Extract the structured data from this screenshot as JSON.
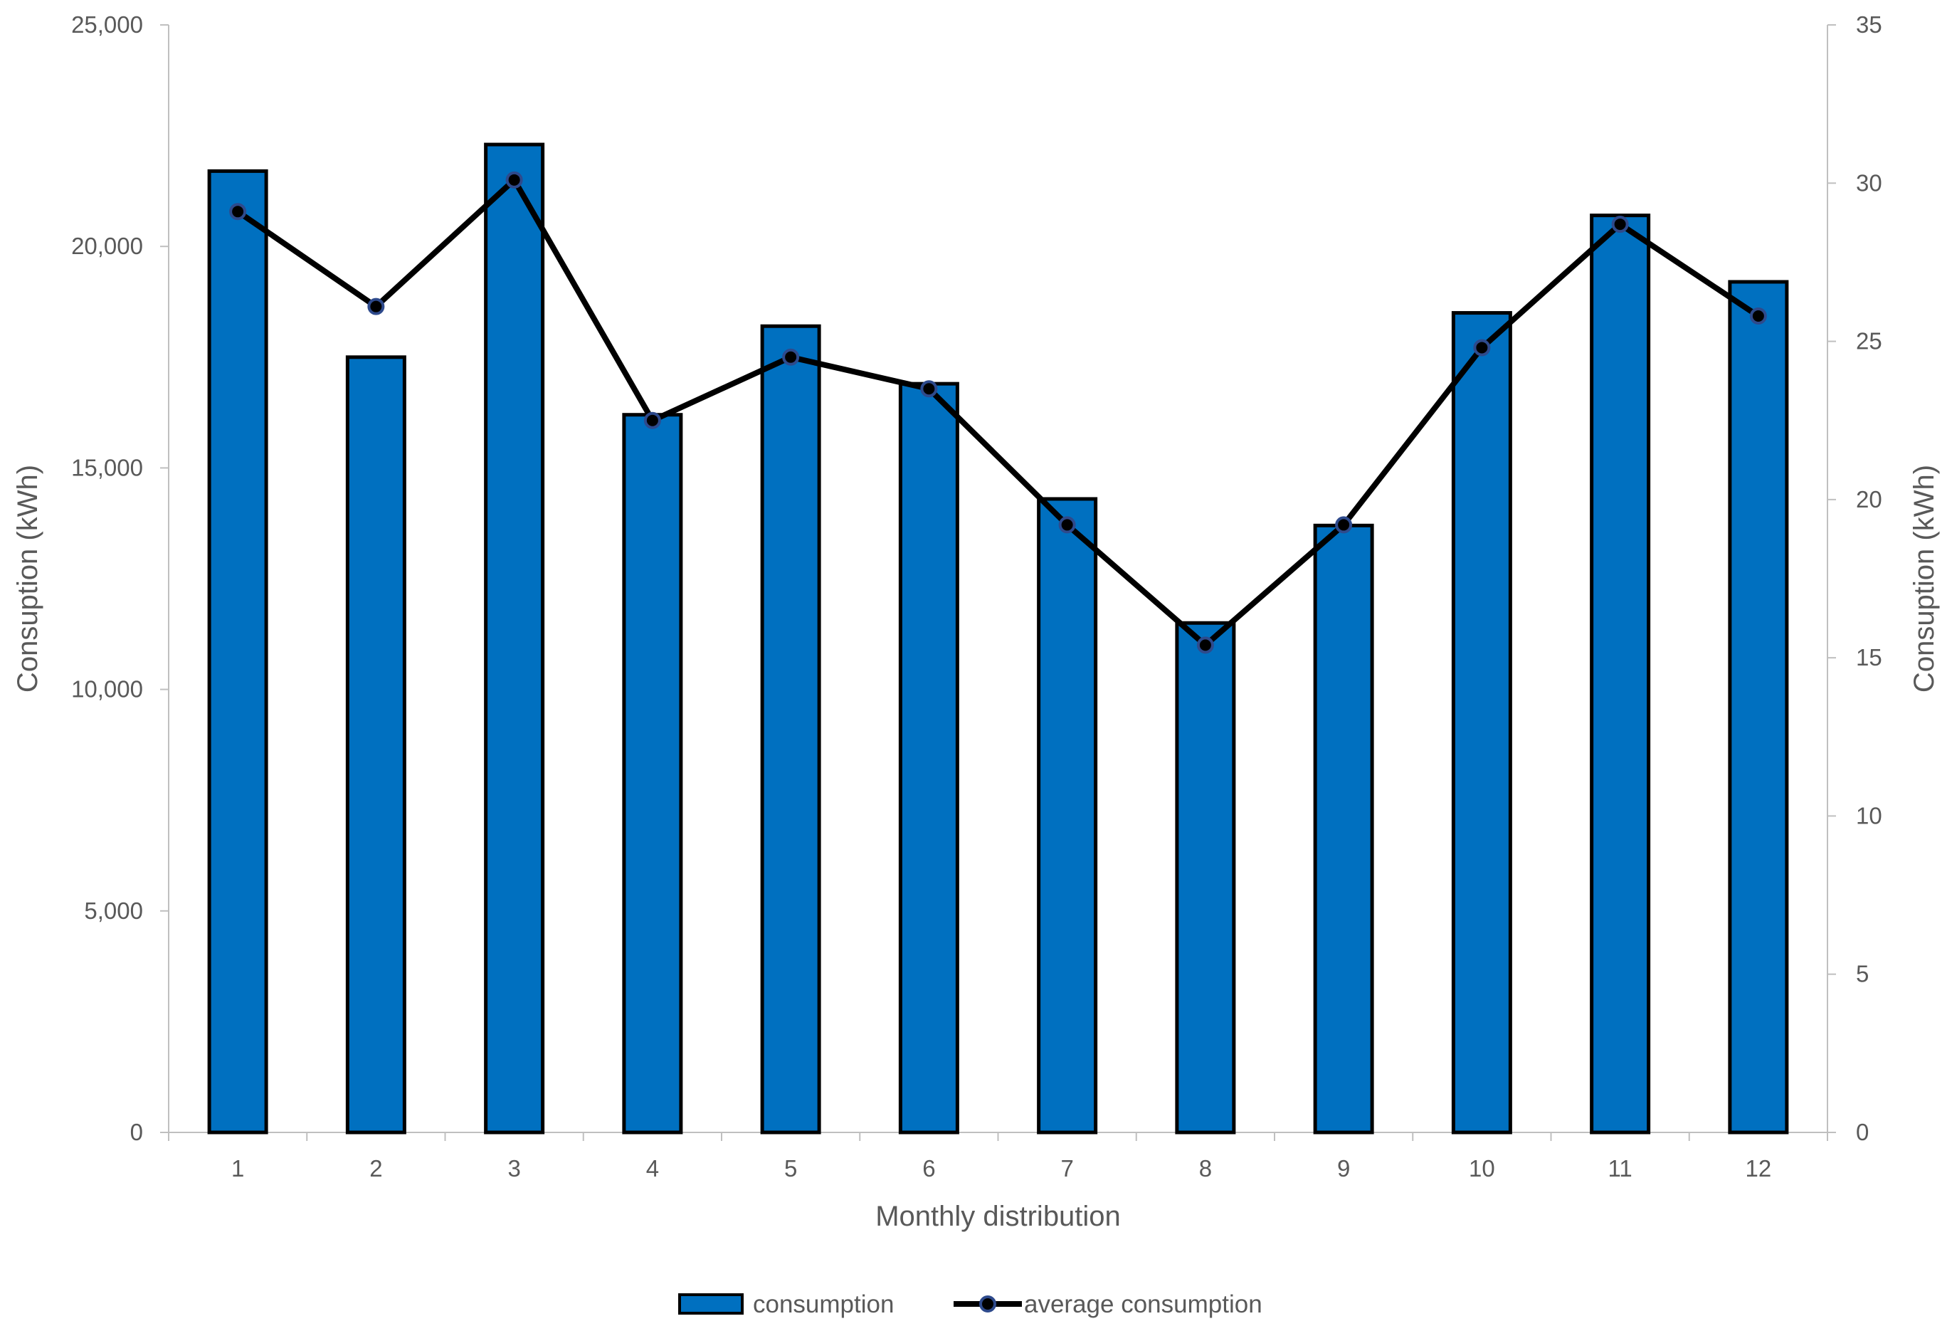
{
  "chart_data": {
    "type": "bar+line",
    "title": "",
    "categories": [
      "1",
      "2",
      "3",
      "4",
      "5",
      "6",
      "7",
      "8",
      "9",
      "10",
      "11",
      "12"
    ],
    "series": [
      {
        "name": "consumption",
        "type": "bar",
        "axis": "left",
        "color": "#0070C0",
        "values": [
          21700,
          17500,
          22300,
          16200,
          18200,
          16900,
          14300,
          11500,
          13700,
          18500,
          20700,
          19200
        ]
      },
      {
        "name": "average consumption",
        "type": "line",
        "axis": "right",
        "color": "#000000",
        "marker_color": "#2E4A8C",
        "values": [
          29.1,
          26.1,
          30.1,
          22.5,
          24.5,
          23.5,
          19.2,
          15.4,
          19.2,
          24.8,
          28.7,
          25.8
        ]
      }
    ],
    "xlabel": "Monthly distribution",
    "ylabel_left": "Consuption (kWh)",
    "ylabel_right": "Consuption (kWh)",
    "ylim_left": [
      0,
      25000
    ],
    "ylim_right": [
      0,
      35
    ],
    "yticks_left": [
      "0",
      "5,000",
      "10,000",
      "15,000",
      "20,000",
      "25,000"
    ],
    "yticks_right": [
      "0",
      "5",
      "10",
      "15",
      "20",
      "25",
      "30",
      "35"
    ],
    "grid": false,
    "legend_position": "bottom"
  }
}
